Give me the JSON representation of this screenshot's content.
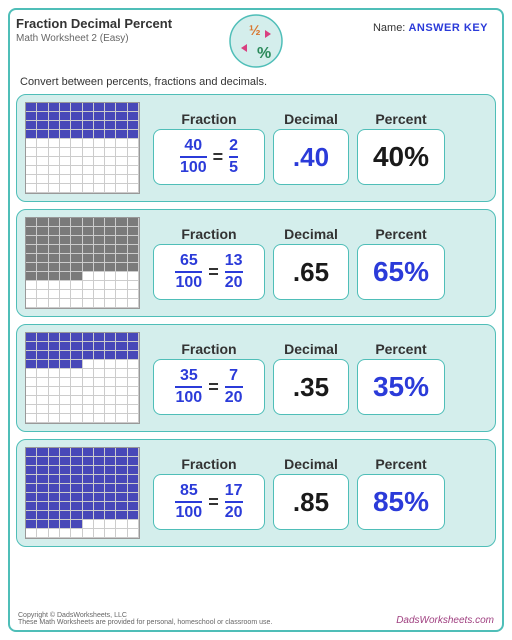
{
  "header": {
    "title": "Fraction Decimal Percent",
    "subtitle": "Math Worksheet 2 (Easy)",
    "name_label": "Name:",
    "answer_key": "ANSWER KEY"
  },
  "instruction": "Convert between percents, fractions and decimals.",
  "labels": {
    "fraction": "Fraction",
    "decimal": "Decimal",
    "percent": "Percent"
  },
  "rows": [
    {
      "filled": 40,
      "fill_color": "blue",
      "frac1_num": "40",
      "frac1_den": "100",
      "frac2_num": "2",
      "frac2_den": "5",
      "decimal": ".40",
      "decimal_color": "blue",
      "percent": "40%",
      "percent_color": "black"
    },
    {
      "filled": 65,
      "fill_color": "gray",
      "frac1_num": "65",
      "frac1_den": "100",
      "frac2_num": "13",
      "frac2_den": "20",
      "decimal": ".65",
      "decimal_color": "black",
      "percent": "65%",
      "percent_color": "blue"
    },
    {
      "filled": 35,
      "fill_color": "blue",
      "frac1_num": "35",
      "frac1_den": "100",
      "frac2_num": "7",
      "frac2_den": "20",
      "decimal": ".35",
      "decimal_color": "black",
      "percent": "35%",
      "percent_color": "blue"
    },
    {
      "filled": 85,
      "fill_color": "blue",
      "frac1_num": "85",
      "frac1_den": "100",
      "frac2_num": "17",
      "frac2_den": "20",
      "decimal": ".85",
      "decimal_color": "black",
      "percent": "85%",
      "percent_color": "blue"
    }
  ],
  "footer": {
    "copyright": "Copyright © DadsWorksheets, LLC",
    "note": "These Math Worksheets are provided for personal, homeschool or classroom use.",
    "site": "DadsWorksheets.com"
  },
  "colors": {
    "teal": "#4fbeb8",
    "teal_light": "#d4eeec",
    "blue": "#2b3bd9",
    "black": "#1a1a1a",
    "fill_blue": "#4848b8",
    "fill_gray": "#7a7a7a"
  }
}
